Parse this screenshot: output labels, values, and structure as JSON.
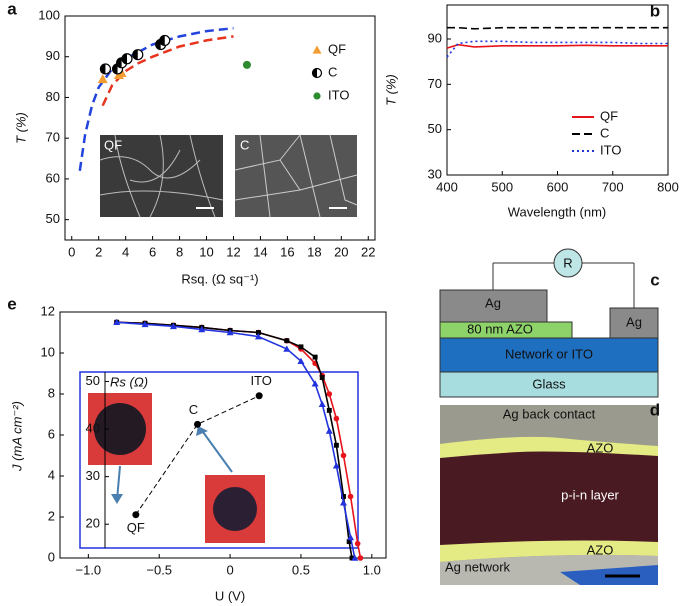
{
  "chart_data": [
    {
      "type": "scatter",
      "panel_label": "a",
      "x_label": "Rsq. (Ω sq⁻¹)",
      "y_label": "T (%)",
      "xlim": [
        -0.5,
        22.5
      ],
      "xticks": [
        0,
        2,
        4,
        6,
        8,
        10,
        12,
        14,
        16,
        18,
        20,
        22
      ],
      "ylim": [
        45,
        100
      ],
      "yticks": [
        50,
        60,
        70,
        80,
        90,
        100
      ],
      "grid": false,
      "legend": "upper right",
      "inset_labels": [
        "QF",
        "C"
      ],
      "series": [
        {
          "name": "QF",
          "color": "#f39c32",
          "marker": "triangle",
          "x": [
            2.3,
            2.5,
            3.5,
            3.7
          ],
          "values": [
            84.5,
            87,
            85.5,
            86
          ]
        },
        {
          "name": "C",
          "color": "#000000",
          "marker": "half",
          "x": [
            2.5,
            3.4,
            3.7,
            4.1,
            4.9,
            6.6,
            6.9
          ],
          "values": [
            87,
            87,
            88.5,
            89.5,
            90.5,
            93,
            94
          ]
        },
        {
          "name": "ITO",
          "color": "#2e8b2e",
          "marker": "circle",
          "x": [
            13
          ],
          "values": [
            88
          ]
        }
      ],
      "fits": [
        {
          "color": "#2244dd",
          "x": [
            0.6,
            1,
            1.5,
            2,
            3,
            4,
            6,
            8,
            10,
            12
          ],
          "values": [
            62,
            71,
            78,
            82.5,
            87,
            89.5,
            93,
            95,
            96.3,
            97
          ]
        },
        {
          "color": "#e8341c",
          "x": [
            2.3,
            3,
            4,
            5,
            6,
            8,
            10,
            12
          ],
          "values": [
            78,
            83,
            86.5,
            88.5,
            90,
            92.5,
            94,
            95
          ]
        }
      ]
    },
    {
      "type": "line",
      "panel_label": "b",
      "x_label": "Wavelength (nm)",
      "y_label": "T (%)",
      "xlim": [
        400,
        800
      ],
      "xticks": [
        400,
        500,
        600,
        700,
        800
      ],
      "ylim": [
        30,
        105
      ],
      "yticks": [
        30,
        50,
        70,
        90
      ],
      "grid": false,
      "legend": "lower right",
      "x": [
        400,
        420,
        450,
        500,
        550,
        600,
        650,
        700,
        750,
        800
      ],
      "series": [
        {
          "name": "QF",
          "color": "#e8141c",
          "dash": "solid",
          "values": [
            86,
            87.5,
            86.5,
            87,
            87,
            87,
            87.2,
            87,
            87,
            87
          ]
        },
        {
          "name": "C",
          "color": "#000000",
          "dash": "dashed",
          "values": [
            95,
            95,
            94.5,
            95,
            95,
            95,
            95,
            95,
            95,
            95
          ]
        },
        {
          "name": "ITO",
          "color": "#2233dd",
          "dash": "dotted",
          "values": [
            82,
            88,
            89,
            89,
            88.5,
            88.5,
            88.5,
            88.5,
            88,
            88
          ]
        }
      ]
    },
    {
      "type": "line",
      "panel_label": "e",
      "x_label": "U (V)",
      "y_label": "J (mA cm⁻²)",
      "xlim": [
        -1.2,
        1.1
      ],
      "xticks": [
        {
          "value": -1.0,
          "label": "−1.0"
        },
        {
          "value": -0.5,
          "label": "−0.5"
        },
        0,
        0.5,
        {
          "value": 1.0,
          "label": "1.0"
        }
      ],
      "ylim": [
        0,
        12
      ],
      "yticks": [
        0,
        2,
        4,
        6,
        8,
        10,
        12
      ],
      "grid": false,
      "series": [
        {
          "color": "#e8141c",
          "marker": "circle",
          "x": [
            -0.8,
            -0.6,
            -0.4,
            -0.2,
            0,
            0.2,
            0.4,
            0.5,
            0.6,
            0.65,
            0.7,
            0.75,
            0.8,
            0.85,
            0.9,
            0.92
          ],
          "values": [
            11.5,
            11.45,
            11.35,
            11.25,
            11.1,
            11,
            10.6,
            10.2,
            9.5,
            8.9,
            8,
            6.8,
            5,
            3,
            0.7,
            0
          ]
        },
        {
          "color": "#000000",
          "marker": "square",
          "x": [
            -0.8,
            -0.6,
            -0.4,
            -0.2,
            0,
            0.2,
            0.4,
            0.5,
            0.6,
            0.65,
            0.7,
            0.75,
            0.8,
            0.84,
            0.86
          ],
          "values": [
            11.5,
            11.45,
            11.35,
            11.25,
            11.1,
            11,
            10.6,
            10.3,
            9.8,
            8.8,
            7.2,
            5.5,
            3,
            0.8,
            0
          ]
        },
        {
          "color": "#2233dd",
          "marker": "triangle",
          "x": [
            -0.8,
            -0.6,
            -0.4,
            -0.2,
            0,
            0.2,
            0.4,
            0.5,
            0.6,
            0.65,
            0.7,
            0.75,
            0.8,
            0.85,
            0.88
          ],
          "values": [
            11.5,
            11.4,
            11.3,
            11.15,
            11,
            10.8,
            10.2,
            9.6,
            8.5,
            7.5,
            6.2,
            4.5,
            2.7,
            1,
            0
          ]
        }
      ]
    },
    {
      "type": "scatter",
      "y_label": "Rs (Ω)",
      "ylim": [
        15,
        52
      ],
      "yticks": [
        20,
        30,
        40,
        50
      ],
      "categories": [
        "QF",
        "C",
        "ITO"
      ],
      "values": [
        22,
        41,
        47
      ],
      "color": "#000000"
    }
  ],
  "diagram": {
    "panel_label": "c",
    "resistor": "R",
    "top_contact": "Ag",
    "azo": "80 nm AZO",
    "side_contact": "Ag",
    "network": "Network or ITO",
    "substrate": "Glass"
  },
  "micrograph": {
    "panel_label": "d",
    "labels": [
      "Ag back contact",
      "AZO",
      "p-i-n layer",
      "AZO",
      "Ag network"
    ]
  }
}
